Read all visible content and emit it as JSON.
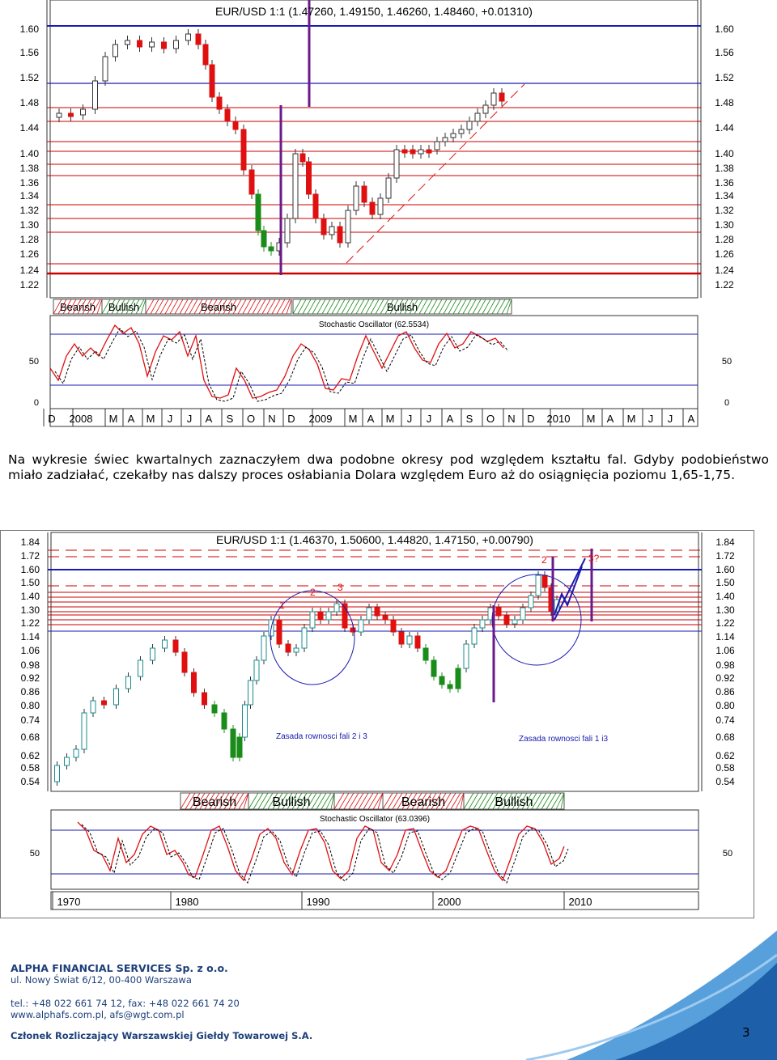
{
  "charts": [
    {
      "id": "chart1",
      "title": "EUR/USD 1:1 (1.47260, 1.49150, 1.46260, 1.48460, +0.01310)",
      "price_ticks": [
        "1.60",
        "1.56",
        "1.52",
        "1.48",
        "1.44",
        "1.40",
        "1.38",
        "1.36",
        "1.34",
        "1.32",
        "1.30",
        "1.28",
        "1.26",
        "1.24",
        "1.22"
      ],
      "zones": [
        "Bearish",
        "Bullish",
        "Bearish",
        "Bullish"
      ],
      "oscillator_label": "Stochastic Oscillator (62.5534)",
      "osc_ticks": [
        "50",
        "0"
      ],
      "time_labels": [
        "D",
        "2008",
        "M",
        "A",
        "M",
        "J",
        "J",
        "A",
        "S",
        "O",
        "N",
        "D",
        "2009",
        "M",
        "A",
        "M",
        "J",
        "J",
        "A",
        "S",
        "O",
        "N",
        "D",
        "2010",
        "M",
        "A",
        "M",
        "J",
        "J",
        "A"
      ]
    },
    {
      "id": "chart2",
      "title": "EUR/USD 1:1 (1.46370, 1.50600, 1.44820, 1.47150, +0.00790)",
      "price_ticks": [
        "1.84",
        "1.72",
        "1.60",
        "1.50",
        "1.40",
        "1.30",
        "1.22",
        "1.14",
        "1.06",
        "0.98",
        "0.92",
        "0.86",
        "0.80",
        "0.74",
        "0.68",
        "0.62",
        "0.58",
        "0.54"
      ],
      "zones": [
        "Bearish",
        "Bullish",
        "Bearish",
        "Bullish"
      ],
      "oscillator_label": "Stochastic Oscillator (63.0396)",
      "osc_ticks": [
        "50"
      ],
      "time_labels": [
        "1970",
        "1980",
        "1990",
        "2000",
        "2010"
      ],
      "wave_labels": [
        "1",
        "2",
        "3",
        "2",
        "3?"
      ],
      "annotations": [
        "Zasada rownosci fali 2 i 3",
        "Zasada rownosci fali 1 i3"
      ]
    }
  ],
  "paragraph": "Na wykresie świec kwartalnych zaznaczyłem dwa podobne okresy pod względem kształtu fal. Gdyby podobieństwo miało zadziałać, czekałby nas dalszy proces osłabiania Dolara względem Euro aż do osiągnięcia poziomu 1,65-1,75.",
  "footer": {
    "company": "ALPHA FINANCIAL SERVICES Sp. z o.o.",
    "address": "ul. Nowy Świat 6/12, 00-400 Warszawa",
    "phone": "tel.: +48 022 661 74 12, fax: +48 022 661 74 20",
    "web": "www.alphafs.com.pl, afs@wgt.com.pl",
    "member": "Członek Rozliczający Warszawskiej Giełdy Towarowej S.A.",
    "page_number": "3"
  },
  "colors": {
    "brand": "#1d3f7a",
    "bull": "#1a8c1a",
    "bear": "#e01010",
    "resistance": "#cc0000",
    "support_line": "#1a1ab0",
    "marker": "#6a1a8a"
  }
}
